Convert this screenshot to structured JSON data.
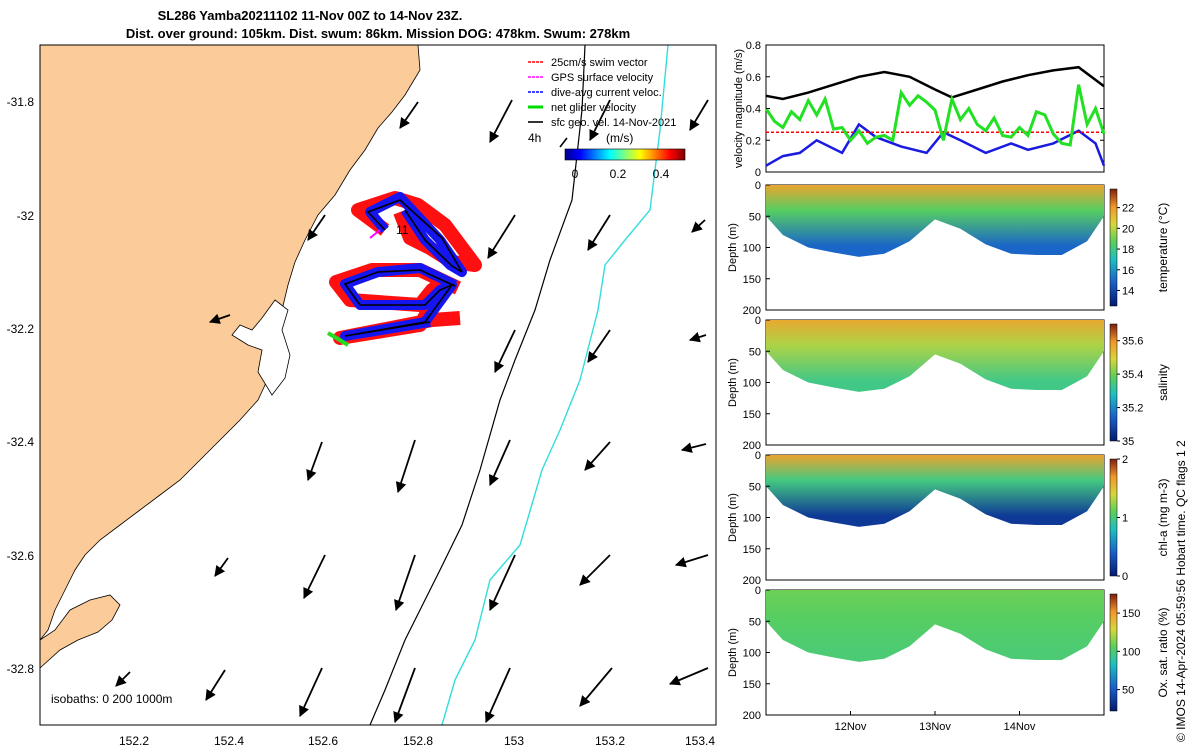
{
  "title": {
    "line1": "SL286 Yamba20211102 11-Nov 00Z to 14-Nov 23Z.",
    "line2": "Dist. over ground: 105km. Dist. swum: 86km. Mission DOG: 478km. Swum: 278km"
  },
  "map": {
    "lon_ticks": [
      "152.2",
      "152.4",
      "152.6",
      "152.8",
      "153",
      "153.2",
      "153.4"
    ],
    "lat_ticks": [
      "-31.8",
      "-32",
      "-32.2",
      "-32.4",
      "-32.6",
      "-32.8"
    ],
    "legend": [
      {
        "label": "25cm/s swim vector",
        "color": "#ff0000"
      },
      {
        "label": "GPS surface velocity",
        "color": "#ff00ff"
      },
      {
        "label": "dive-avg current veloc.",
        "color": "#0000ff"
      },
      {
        "label": "net glider velocity",
        "color": "#00dd00"
      },
      {
        "label": "sfc geo. vel. 14-Nov-2021",
        "color": "#000000"
      }
    ],
    "arrow_scale_label": "4h",
    "colorbar_unit": "(m/s)",
    "colorbar_ticks": [
      "0",
      "0.2",
      "0.4"
    ],
    "track_label": "11",
    "isobaths": "isobaths: 0   200  1000m",
    "colors": {
      "land": "#fbcb9a",
      "iso200": "#000000",
      "iso1000": "#33dddd"
    }
  },
  "right": {
    "x_ticks": [
      "12Nov",
      "13Nov",
      "14Nov"
    ],
    "footer": "© IMOS 14-Apr-2024 05:59:56 Hobart time. QC flags 1  2"
  },
  "chart_data": [
    {
      "type": "line",
      "ylabel": "velocity magnitude (m/s)",
      "ylim": [
        0,
        0.8
      ],
      "yticks": [
        "0",
        "0.2",
        "0.4",
        "0.6",
        "0.8"
      ],
      "x_unit": "day",
      "series": [
        {
          "color": "#000000",
          "x": [
            11.0,
            11.2,
            11.5,
            11.8,
            12.1,
            12.4,
            12.7,
            13.0,
            13.2,
            13.5,
            13.8,
            14.1,
            14.4,
            14.7,
            15.0
          ],
          "values": [
            0.48,
            0.46,
            0.5,
            0.55,
            0.6,
            0.63,
            0.6,
            0.52,
            0.47,
            0.52,
            0.57,
            0.61,
            0.64,
            0.66,
            0.54
          ]
        },
        {
          "color": "#1a1ae0",
          "x": [
            11.0,
            11.2,
            11.4,
            11.6,
            11.9,
            12.1,
            12.3,
            12.6,
            12.9,
            13.1,
            13.3,
            13.6,
            13.9,
            14.1,
            14.4,
            14.7,
            14.9,
            15.0
          ],
          "values": [
            0.04,
            0.1,
            0.12,
            0.2,
            0.12,
            0.3,
            0.22,
            0.16,
            0.12,
            0.25,
            0.2,
            0.12,
            0.18,
            0.14,
            0.18,
            0.26,
            0.18,
            0.04
          ]
        },
        {
          "color": "#ff0000",
          "dashed": true,
          "x": [
            11.0,
            15.0
          ],
          "values": [
            0.25,
            0.25
          ]
        },
        {
          "color": "#22e022",
          "x": [
            11.0,
            11.1,
            11.2,
            11.3,
            11.4,
            11.5,
            11.6,
            11.7,
            11.8,
            11.9,
            12.0,
            12.1,
            12.2,
            12.3,
            12.4,
            12.5,
            12.6,
            12.7,
            12.8,
            12.9,
            13.0,
            13.1,
            13.2,
            13.3,
            13.4,
            13.5,
            13.6,
            13.7,
            13.8,
            13.9,
            14.0,
            14.1,
            14.2,
            14.3,
            14.4,
            14.5,
            14.6,
            14.7,
            14.8,
            14.9,
            15.0
          ],
          "values": [
            0.4,
            0.32,
            0.28,
            0.38,
            0.33,
            0.45,
            0.36,
            0.46,
            0.27,
            0.28,
            0.2,
            0.26,
            0.18,
            0.22,
            0.23,
            0.2,
            0.5,
            0.42,
            0.48,
            0.44,
            0.39,
            0.2,
            0.46,
            0.33,
            0.4,
            0.3,
            0.26,
            0.34,
            0.23,
            0.22,
            0.28,
            0.23,
            0.38,
            0.36,
            0.24,
            0.18,
            0.17,
            0.55,
            0.3,
            0.4,
            0.24
          ]
        }
      ]
    },
    {
      "type": "heatmap",
      "label": "temperature (°C)",
      "ylabel": "Depth (m)",
      "ylim": [
        200,
        0
      ],
      "yticks": [
        "0",
        "50",
        "100",
        "150",
        "200"
      ],
      "clim": [
        12.5,
        23.8
      ],
      "cticks": [
        "14",
        "16",
        "18",
        "20",
        "22"
      ],
      "cvals": [
        14,
        16,
        18,
        20,
        22
      ],
      "profile_x": [
        11.0,
        11.2,
        11.5,
        11.8,
        12.1,
        12.4,
        12.7,
        13.0,
        13.3,
        13.6,
        13.9,
        14.2,
        14.5,
        14.8,
        15.0
      ],
      "bottom_depth": [
        50,
        80,
        100,
        108,
        115,
        110,
        90,
        55,
        70,
        95,
        110,
        112,
        112,
        90,
        50
      ],
      "surface_value": 21.5,
      "deep_value": 14.5
    },
    {
      "type": "heatmap",
      "label": "salinity",
      "ylabel": "Depth (m)",
      "ylim": [
        200,
        0
      ],
      "yticks": [
        "0",
        "50",
        "100",
        "150",
        "200"
      ],
      "clim": [
        35.0,
        35.7
      ],
      "cticks": [
        "35",
        "35.2",
        "35.4",
        "35.6"
      ],
      "cvals": [
        35,
        35.2,
        35.4,
        35.6
      ],
      "profile_x": [
        11.0,
        11.2,
        11.5,
        11.8,
        12.1,
        12.4,
        12.7,
        13.0,
        13.3,
        13.6,
        13.9,
        14.2,
        14.5,
        14.8,
        15.0
      ],
      "bottom_depth": [
        50,
        80,
        100,
        108,
        115,
        110,
        90,
        55,
        70,
        95,
        110,
        112,
        112,
        90,
        50
      ],
      "surface_value": 35.55,
      "deep_value": 35.3
    },
    {
      "type": "heatmap",
      "label": "chl-a (mg m-3)",
      "ylabel": "Depth (m)",
      "ylim": [
        200,
        0
      ],
      "yticks": [
        "0",
        "50",
        "100",
        "150",
        "200"
      ],
      "clim": [
        0,
        2
      ],
      "cticks": [
        "0",
        "1",
        "2"
      ],
      "cvals": [
        0,
        1,
        2
      ],
      "profile_x": [
        11.0,
        11.2,
        11.5,
        11.8,
        12.1,
        12.4,
        12.7,
        13.0,
        13.3,
        13.6,
        13.9,
        14.2,
        14.5,
        14.8,
        15.0
      ],
      "bottom_depth": [
        50,
        80,
        100,
        108,
        115,
        110,
        90,
        55,
        70,
        95,
        110,
        112,
        112,
        90,
        50
      ],
      "surface_value": 1.6,
      "deep_value": 0.15
    },
    {
      "type": "heatmap",
      "label": "Ox. sat. ratio (%)",
      "ylabel": "Depth (m)",
      "ylim": [
        200,
        0
      ],
      "yticks": [
        "0",
        "50",
        "100",
        "150",
        "200"
      ],
      "clim": [
        22,
        175
      ],
      "cticks": [
        "50",
        "100",
        "150"
      ],
      "cvals": [
        50,
        100,
        150
      ],
      "profile_x": [
        11.0,
        11.2,
        11.5,
        11.8,
        12.1,
        12.4,
        12.7,
        13.0,
        13.3,
        13.6,
        13.9,
        14.2,
        14.5,
        14.8,
        15.0
      ],
      "bottom_depth": [
        50,
        80,
        100,
        108,
        115,
        110,
        90,
        55,
        70,
        95,
        110,
        112,
        112,
        90,
        50
      ],
      "surface_value": 102,
      "deep_value": 92
    }
  ]
}
